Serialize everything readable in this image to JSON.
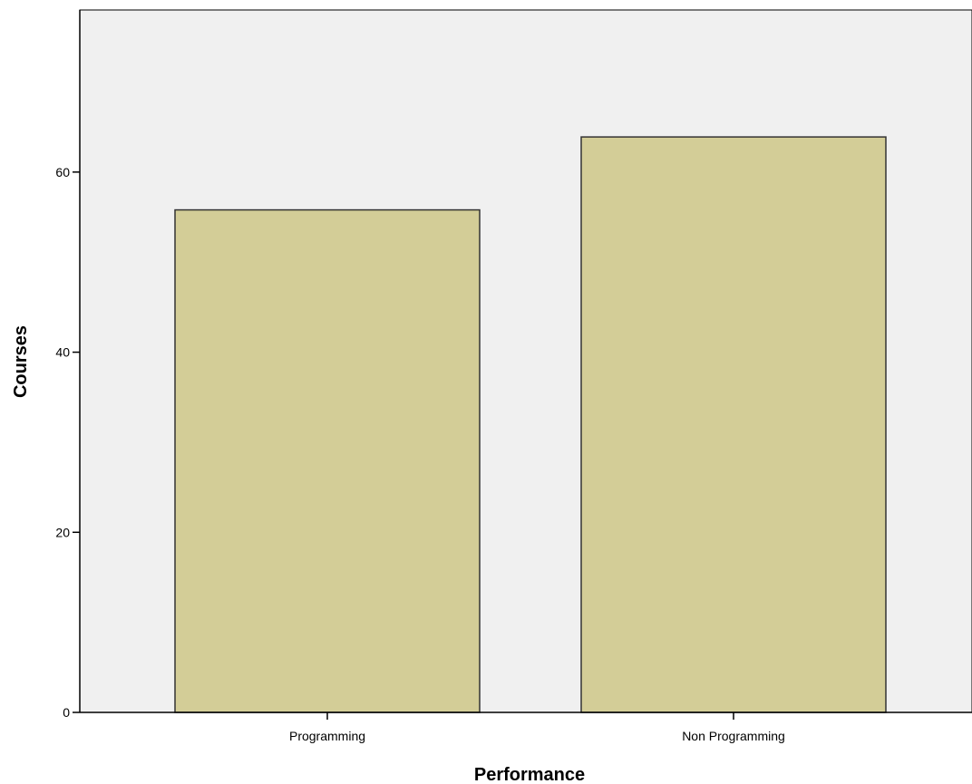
{
  "chart_data": {
    "type": "bar",
    "title": "",
    "xlabel": "Performance",
    "ylabel": "Courses",
    "categories": [
      "Programming",
      "Non Programming"
    ],
    "values": [
      55.8,
      63.9
    ],
    "ylim": [
      0,
      78
    ],
    "yticks": [
      0,
      20,
      40,
      60
    ],
    "grid": false,
    "colors": {
      "bar_fill": "#d3cd97",
      "bar_stroke": "#333333",
      "plot_background": "#f0f0f0",
      "axis": "#000000"
    }
  }
}
